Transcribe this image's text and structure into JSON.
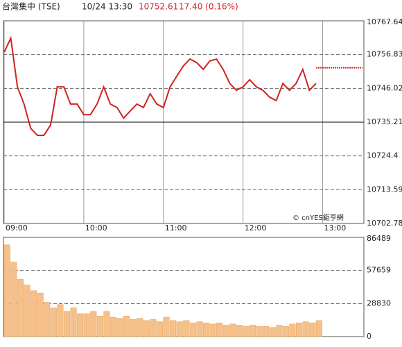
{
  "header": {
    "title": "台灣集中 (TSE)",
    "datetime": "10/24 13:30",
    "price": 10752.61,
    "change": "17.40 (0.16%)"
  },
  "watermark": "© cnYES鉅亨網",
  "chart_data": [
    {
      "type": "line",
      "color": "#d42020",
      "prev_close": 10735.21,
      "x": [
        "09:00",
        "09:05",
        "09:10",
        "09:15",
        "09:20",
        "09:25",
        "09:30",
        "09:35",
        "09:40",
        "09:45",
        "09:50",
        "09:55",
        "10:00",
        "10:05",
        "10:10",
        "10:15",
        "10:20",
        "10:25",
        "10:30",
        "10:35",
        "10:40",
        "10:45",
        "10:50",
        "10:55",
        "11:00",
        "11:05",
        "11:10",
        "11:15",
        "11:20",
        "11:25",
        "11:30",
        "11:35",
        "11:40",
        "11:45",
        "11:50",
        "11:55",
        "12:00",
        "12:05",
        "12:10",
        "12:15",
        "12:20",
        "12:25",
        "12:30",
        "12:35",
        "12:40",
        "12:45",
        "12:50",
        "12:55"
      ],
      "values": [
        10757.6,
        10762.1,
        10746.5,
        10741.0,
        10733.2,
        10731.0,
        10731.0,
        10734.3,
        10746.5,
        10746.5,
        10741.0,
        10741.0,
        10737.6,
        10737.6,
        10741.0,
        10746.5,
        10741.0,
        10739.9,
        10736.5,
        10738.8,
        10741.0,
        10739.9,
        10744.3,
        10741.0,
        10739.9,
        10746.5,
        10749.9,
        10753.2,
        10755.4,
        10754.3,
        10752.1,
        10754.8,
        10755.4,
        10752.1,
        10747.6,
        10745.4,
        10746.5,
        10748.8,
        10746.5,
        10745.4,
        10743.2,
        10742.1,
        10747.6,
        10745.4,
        10747.6,
        10752.1,
        10745.4,
        10747.6
      ],
      "xlim": [
        "09:00",
        "13:30"
      ],
      "xticks": [
        "09:00",
        "10:00",
        "11:00",
        "12:00",
        "13:00"
      ],
      "ylim": [
        10702.78,
        10767.64
      ],
      "yticks": [
        10767.64,
        10756.83,
        10746.02,
        10735.21,
        10724.4,
        10713.59,
        10702.78
      ]
    },
    {
      "type": "bar",
      "color": "#f5c089",
      "x": [
        "09:00",
        "09:05",
        "09:10",
        "09:15",
        "09:20",
        "09:25",
        "09:30",
        "09:35",
        "09:40",
        "09:45",
        "09:50",
        "09:55",
        "10:00",
        "10:05",
        "10:10",
        "10:15",
        "10:20",
        "10:25",
        "10:30",
        "10:35",
        "10:40",
        "10:45",
        "10:50",
        "10:55",
        "11:00",
        "11:05",
        "11:10",
        "11:15",
        "11:20",
        "11:25",
        "11:30",
        "11:35",
        "11:40",
        "11:45",
        "11:50",
        "11:55",
        "12:00",
        "12:05",
        "12:10",
        "12:15",
        "12:20",
        "12:25",
        "12:30",
        "12:35",
        "12:40",
        "12:45",
        "12:50",
        "12:55"
      ],
      "values": [
        80000,
        65000,
        50000,
        45000,
        40000,
        38000,
        30000,
        25000,
        28000,
        22000,
        25000,
        20000,
        20000,
        22000,
        18000,
        22000,
        17000,
        16000,
        18000,
        15000,
        16000,
        14000,
        15000,
        13000,
        17000,
        14000,
        13000,
        14000,
        12000,
        13000,
        12000,
        11000,
        12000,
        10000,
        11000,
        10000,
        9000,
        10000,
        9000,
        9000,
        8000,
        10000,
        9000,
        11000,
        12000,
        13000,
        12000,
        14000
      ],
      "xlim": [
        "09:00",
        "13:30"
      ],
      "ylim": [
        0,
        86489
      ],
      "yticks": [
        86489,
        57659,
        28830,
        0
      ]
    }
  ]
}
